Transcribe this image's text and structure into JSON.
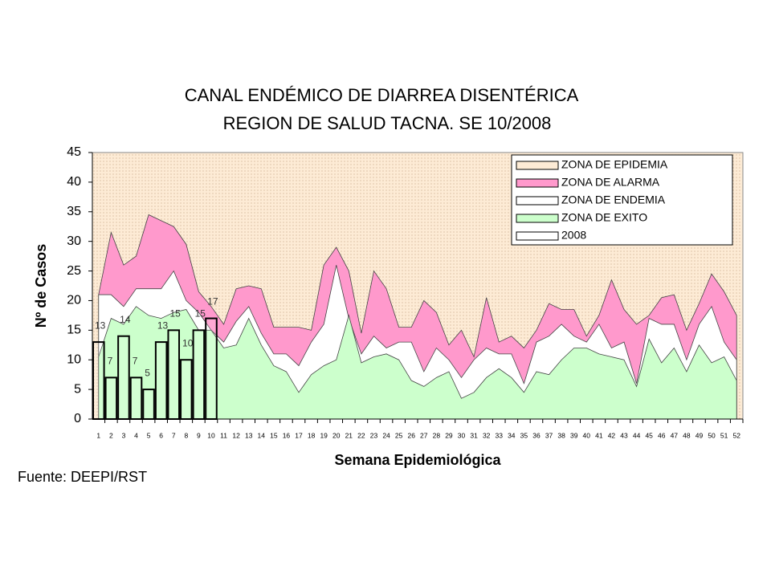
{
  "chart_data": {
    "type": "endemic_channel",
    "title": "CANAL ENDÉMICO DE DIARREA DISENTÉRICA",
    "subtitle": "REGION DE SALUD TACNA.   SE 10/2008",
    "y_label": "Nº de Casos",
    "x_label": "Semana Epidemiológica",
    "source": "Fuente: DEEPI/RST",
    "categories": [
      "1",
      "2",
      "3",
      "4",
      "5",
      "6",
      "7",
      "8",
      "9",
      "10",
      "11",
      "12",
      "13",
      "14",
      "15",
      "16",
      "17",
      "18",
      "19",
      "20",
      "21",
      "22",
      "23",
      "24",
      "25",
      "26",
      "27",
      "28",
      "29",
      "30",
      "31",
      "32",
      "33",
      "34",
      "35",
      "36",
      "37",
      "38",
      "39",
      "40",
      "41",
      "42",
      "43",
      "44",
      "45",
      "46",
      "47",
      "48",
      "49",
      "50",
      "51",
      "52"
    ],
    "ylim": [
      0,
      45
    ],
    "yticks": [
      0,
      5,
      10,
      15,
      20,
      25,
      30,
      35,
      40,
      45
    ],
    "background_zone": {
      "name": "ZONA DE EPIDEMIA",
      "color": "#fdebd5"
    },
    "series": [
      {
        "name": "ZONA DE ALARMA",
        "color": "#ff99cc",
        "kind": "area",
        "values": [
          21,
          31.5,
          26,
          27.5,
          34.5,
          33.5,
          32.5,
          29.5,
          21.5,
          19,
          16,
          22,
          22.5,
          22,
          15.5,
          15.5,
          15.5,
          15,
          26,
          29,
          25,
          14.5,
          25,
          22,
          15.5,
          15.5,
          20,
          18,
          12.5,
          15,
          10.5,
          20.5,
          13,
          14,
          12,
          15,
          19.5,
          18.5,
          18.5,
          14,
          17.5,
          23.5,
          18.5,
          16,
          17.5,
          20.5,
          21,
          15,
          19.5,
          24.5,
          21.5,
          17.5
        ]
      },
      {
        "name": "ZONA DE ENDEMIA",
        "color": "#ffffff",
        "kind": "area",
        "values": [
          21,
          21,
          19,
          22,
          22,
          22,
          25,
          20,
          18,
          15,
          13,
          16.5,
          19,
          14.5,
          11,
          11,
          9,
          13,
          16,
          26,
          17,
          11,
          14,
          12,
          13,
          13,
          8,
          12,
          10,
          7,
          10,
          12,
          11,
          11,
          6,
          13,
          14,
          16,
          14,
          13,
          16,
          12,
          13,
          6,
          17,
          16,
          16,
          10,
          16,
          19,
          13,
          10
        ]
      },
      {
        "name": "ZONA DE EXITO",
        "color": "#ccffcc",
        "kind": "area",
        "values": [
          10.5,
          17,
          16,
          19,
          17.5,
          17,
          18,
          18.5,
          15,
          15,
          12,
          12.5,
          17,
          12.5,
          9,
          8,
          4.5,
          7.5,
          9,
          10,
          17.5,
          9.5,
          10.5,
          11,
          10,
          6.5,
          5.5,
          7,
          8,
          3.5,
          4.5,
          7,
          8.5,
          7,
          4.5,
          8,
          7.5,
          10,
          12,
          12,
          11,
          10.5,
          10,
          5.5,
          13.5,
          9.5,
          12,
          8,
          12.5,
          9.5,
          10.5,
          6.5
        ]
      },
      {
        "name": "2008",
        "color": "#ffffff",
        "kind": "bar",
        "values": [
          13,
          7,
          14,
          7,
          5,
          13,
          15,
          10,
          15,
          17,
          null,
          null,
          null,
          null,
          null,
          null,
          null,
          null,
          null,
          null,
          null,
          null,
          null,
          null,
          null,
          null,
          null,
          null,
          null,
          null,
          null,
          null,
          null,
          null,
          null,
          null,
          null,
          null,
          null,
          null,
          null,
          null,
          null,
          null,
          null,
          null,
          null,
          null,
          null,
          null,
          null,
          null
        ]
      }
    ]
  }
}
